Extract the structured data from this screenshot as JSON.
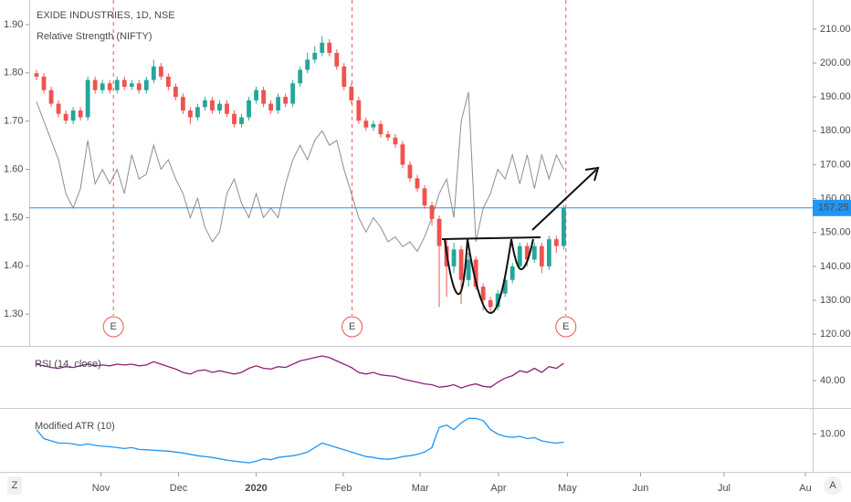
{
  "toolbar": {
    "left": "Z",
    "right": "A"
  },
  "chart_data": [
    {
      "type": "candlestick",
      "title": "EXIDE INDUSTRIES, 1D, NSE",
      "x": [
        1,
        2,
        3,
        4,
        5,
        6,
        7,
        8,
        9,
        10,
        11,
        12,
        13,
        14,
        15,
        16,
        17,
        18,
        19,
        20,
        21,
        22,
        23,
        24,
        25,
        26,
        27,
        28,
        29,
        30,
        31,
        32,
        33,
        34,
        35,
        36,
        37,
        38,
        39,
        40,
        41,
        42,
        43,
        44,
        45,
        46,
        47,
        48,
        49,
        50,
        51,
        52,
        53,
        54,
        55,
        56,
        57,
        58,
        59,
        60,
        61,
        62,
        63,
        64,
        65,
        66,
        67,
        68,
        69,
        70,
        71,
        72,
        73
      ],
      "open": [
        197,
        196,
        192,
        188,
        185,
        183,
        186,
        184,
        195,
        192,
        194,
        192,
        195,
        193,
        194,
        192,
        195,
        199,
        196,
        193,
        190,
        186,
        184,
        187,
        189,
        186,
        188,
        185,
        182,
        184,
        189,
        192,
        188,
        186,
        190,
        188,
        194,
        198,
        201,
        203,
        206,
        203,
        199,
        193,
        189,
        183,
        181,
        182,
        179,
        178,
        176,
        170,
        166,
        163,
        158,
        154,
        146,
        140,
        145,
        136,
        142,
        134,
        130,
        128,
        132,
        136,
        140,
        146,
        142,
        146,
        140,
        148,
        146
      ],
      "high": [
        198,
        197,
        193,
        189,
        186,
        187,
        187,
        196,
        196,
        195,
        195,
        196,
        196,
        195,
        195,
        196,
        201,
        200,
        197,
        194,
        191,
        187,
        188,
        190,
        190,
        189,
        189,
        186,
        185,
        190,
        193,
        193,
        189,
        191,
        191,
        195,
        199,
        203,
        205,
        208,
        207,
        204,
        200,
        194,
        190,
        184,
        183,
        183,
        180,
        179,
        177,
        171,
        167,
        164,
        159,
        155,
        148,
        147,
        146,
        144,
        143,
        135,
        131,
        133,
        137,
        141,
        147,
        147,
        147,
        147,
        149,
        149,
        158
      ],
      "low": [
        195,
        191,
        187,
        184,
        182,
        182,
        183,
        183,
        191,
        191,
        191,
        191,
        192,
        192,
        191,
        191,
        194,
        195,
        192,
        189,
        185,
        182,
        183,
        186,
        185,
        185,
        184,
        181,
        181,
        183,
        188,
        187,
        185,
        185,
        187,
        187,
        193,
        197,
        200,
        202,
        202,
        198,
        192,
        188,
        182,
        180,
        180,
        178,
        177,
        175,
        169,
        165,
        162,
        157,
        152,
        128,
        131,
        138,
        129,
        134,
        133,
        127,
        126,
        127,
        131,
        135,
        139,
        140,
        141,
        138,
        139,
        144,
        145
      ],
      "close": [
        196,
        192,
        188,
        185,
        183,
        186,
        184,
        195,
        192,
        194,
        192,
        195,
        193,
        194,
        192,
        195,
        199,
        196,
        193,
        190,
        186,
        184,
        187,
        189,
        186,
        188,
        185,
        182,
        184,
        189,
        192,
        188,
        186,
        190,
        188,
        194,
        198,
        201,
        203,
        206,
        203,
        199,
        193,
        189,
        183,
        181,
        182,
        179,
        178,
        176,
        170,
        166,
        163,
        158,
        154,
        146,
        140,
        145,
        136,
        142,
        134,
        130,
        128,
        132,
        136,
        140,
        146,
        142,
        146,
        140,
        148,
        146,
        157.25
      ],
      "up_color": "#26a69a",
      "down_color": "#ef5350",
      "last_price": 157.25,
      "last_price_color": "#2196f3",
      "series": [
        {
          "name": "Relative Strength (NIFTY)",
          "color": "#8a8d96",
          "axis": "y2",
          "values": [
            1.74,
            1.7,
            1.66,
            1.62,
            1.55,
            1.52,
            1.56,
            1.66,
            1.57,
            1.6,
            1.57,
            1.6,
            1.55,
            1.63,
            1.58,
            1.59,
            1.65,
            1.6,
            1.62,
            1.58,
            1.55,
            1.5,
            1.54,
            1.48,
            1.45,
            1.47,
            1.55,
            1.58,
            1.53,
            1.5,
            1.55,
            1.5,
            1.52,
            1.5,
            1.57,
            1.62,
            1.65,
            1.62,
            1.66,
            1.68,
            1.65,
            1.66,
            1.6,
            1.55,
            1.5,
            1.47,
            1.5,
            1.48,
            1.45,
            1.46,
            1.44,
            1.45,
            1.43,
            1.46,
            1.5,
            1.55,
            1.58,
            1.5,
            1.7,
            1.76,
            1.45,
            1.52,
            1.55,
            1.6,
            1.58,
            1.63,
            1.57,
            1.63,
            1.56,
            1.63,
            1.58,
            1.63,
            1.6
          ]
        }
      ],
      "events": [
        {
          "x": 11.5,
          "label": "E"
        },
        {
          "x": 44.1,
          "label": "E"
        },
        {
          "x": 73.3,
          "label": "E"
        }
      ],
      "event_color": "#ef5350",
      "xlim": [
        0,
        107
      ],
      "xticks": [
        {
          "value": 9.8,
          "label": "Nov"
        },
        {
          "value": 20.4,
          "label": "Dec"
        },
        {
          "value": 31,
          "label": "2020"
        },
        {
          "value": 42.9,
          "label": "Feb"
        },
        {
          "value": 53.4,
          "label": "Mar"
        },
        {
          "value": 64.1,
          "label": "Apr"
        },
        {
          "value": 73.5,
          "label": "May"
        },
        {
          "value": 83.5,
          "label": "Jun"
        },
        {
          "value": 94.9,
          "label": "Jul"
        },
        {
          "value": 106,
          "label": "Au"
        }
      ],
      "ylim": [
        116.8,
        218.6
      ],
      "yticks": [
        {
          "value": 210,
          "label": "210.00"
        },
        {
          "value": 200,
          "label": "200.00"
        },
        {
          "value": 190,
          "label": "190.00"
        },
        {
          "value": 180,
          "label": "180.00"
        },
        {
          "value": 170,
          "label": "170.00"
        },
        {
          "value": 160,
          "label": "160.00"
        },
        {
          "value": 150,
          "label": "150.00"
        },
        {
          "value": 140,
          "label": "140.00"
        },
        {
          "value": 130,
          "label": "130.00"
        },
        {
          "value": 120,
          "label": "120.00"
        }
      ],
      "y2lim": [
        1.236,
        1.951
      ],
      "y2ticks": [
        {
          "value": 1.9,
          "label": "1.90"
        },
        {
          "value": 1.8,
          "label": "1.80"
        },
        {
          "value": 1.7,
          "label": "1.70"
        },
        {
          "value": 1.6,
          "label": "1.60"
        },
        {
          "value": 1.5,
          "label": "1.50"
        },
        {
          "value": 1.4,
          "label": "1.40"
        },
        {
          "value": 1.3,
          "label": "1.30"
        }
      ]
    },
    {
      "type": "line",
      "series": [
        {
          "name": "RSI (14, close)",
          "color": "#8e1f7d",
          "values": [
            60,
            58,
            56,
            55,
            57,
            56,
            58,
            60,
            58,
            59,
            58,
            60,
            59,
            60,
            58,
            59,
            63,
            60,
            57,
            54,
            50,
            48,
            52,
            53,
            50,
            52,
            50,
            48,
            50,
            55,
            58,
            55,
            54,
            57,
            56,
            60,
            64,
            66,
            68,
            70,
            68,
            64,
            60,
            56,
            50,
            48,
            50,
            47,
            46,
            45,
            42,
            40,
            38,
            36,
            35,
            32,
            33,
            35,
            31,
            34,
            36,
            33,
            32,
            38,
            43,
            46,
            52,
            50,
            55,
            50,
            57,
            55,
            61
          ]
        }
      ],
      "ylim": [
        7.8,
        80
      ],
      "yticks": [
        {
          "value": 40,
          "label": "40.00"
        }
      ]
    },
    {
      "type": "line",
      "series": [
        {
          "name": "Modified ATR (10)",
          "color": "#2196f3",
          "values": [
            11,
            9,
            8.5,
            8,
            8,
            7.8,
            7.5,
            7.8,
            7.5,
            7.3,
            7.2,
            7,
            6.8,
            7,
            6.6,
            6.5,
            6.4,
            6.3,
            6.2,
            6,
            5.8,
            5.5,
            5.2,
            5,
            4.8,
            4.5,
            4.2,
            4,
            3.8,
            3.6,
            4,
            4.5,
            4.3,
            4.8,
            5,
            5.2,
            5.5,
            6,
            7,
            8,
            7.5,
            7,
            6.5,
            6,
            5.5,
            5,
            4.8,
            4.5,
            4.4,
            4.6,
            5,
            5.2,
            5.5,
            6,
            7,
            11.5,
            12,
            11,
            12.5,
            13.5,
            13.5,
            13,
            11,
            10,
            9.5,
            9.3,
            9.5,
            9,
            9.2,
            8.5,
            8.2,
            8,
            8.2
          ]
        }
      ],
      "ylim": [
        1.8,
        15.4
      ],
      "yticks": [
        {
          "value": 10,
          "label": "10.00"
        }
      ]
    }
  ]
}
